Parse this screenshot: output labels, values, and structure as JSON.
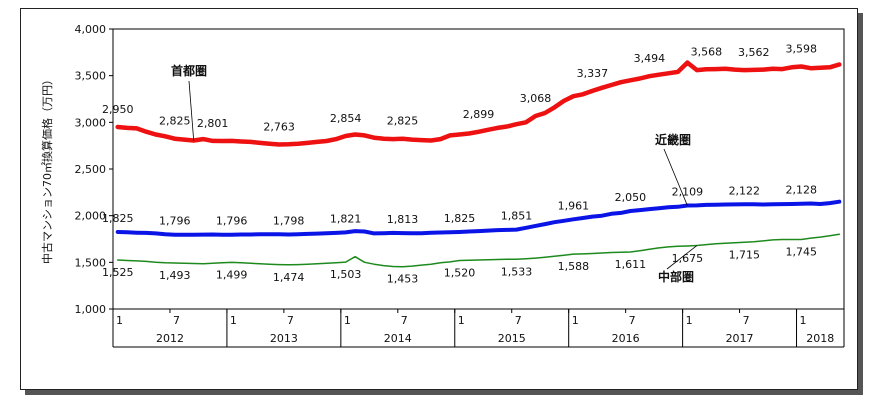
{
  "chart_data": {
    "type": "line",
    "ylabel": "中古マンション70㎡換算価格（万円）",
    "ylim": [
      1000,
      4000
    ],
    "yticks": [
      1000,
      1500,
      2000,
      2500,
      3000,
      3500,
      4000
    ],
    "ytick_labels": [
      "1,000",
      "1,500",
      "2,000",
      "2,500",
      "3,000",
      "3,500",
      "4,000"
    ],
    "x_start": "2012-01",
    "months": 77,
    "month_ticks": [
      {
        "i": 0,
        "label": "1"
      },
      {
        "i": 6,
        "label": "7"
      },
      {
        "i": 12,
        "label": "1"
      },
      {
        "i": 18,
        "label": "7"
      },
      {
        "i": 24,
        "label": "1"
      },
      {
        "i": 30,
        "label": "7"
      },
      {
        "i": 36,
        "label": "1"
      },
      {
        "i": 42,
        "label": "7"
      },
      {
        "i": 48,
        "label": "1"
      },
      {
        "i": 54,
        "label": "7"
      },
      {
        "i": 60,
        "label": "1"
      },
      {
        "i": 66,
        "label": "7"
      },
      {
        "i": 72,
        "label": "1"
      }
    ],
    "years": [
      {
        "label": "2012",
        "start": 0,
        "end": 12
      },
      {
        "label": "2013",
        "start": 12,
        "end": 24
      },
      {
        "label": "2014",
        "start": 24,
        "end": 36
      },
      {
        "label": "2015",
        "start": 36,
        "end": 48
      },
      {
        "label": "2016",
        "start": 48,
        "end": 60
      },
      {
        "label": "2017",
        "start": 60,
        "end": 72
      },
      {
        "label": "2018",
        "start": 72,
        "end": 77
      }
    ],
    "series": [
      {
        "name": "首都圏",
        "color": "#ee1111",
        "width": 4.5,
        "values": [
          2950,
          2940,
          2935,
          2900,
          2870,
          2850,
          2825,
          2815,
          2805,
          2820,
          2801,
          2800,
          2801,
          2795,
          2790,
          2780,
          2770,
          2763,
          2765,
          2770,
          2780,
          2790,
          2800,
          2820,
          2854,
          2870,
          2860,
          2835,
          2825,
          2820,
          2825,
          2815,
          2810,
          2805,
          2820,
          2860,
          2870,
          2880,
          2899,
          2920,
          2940,
          2955,
          2980,
          3000,
          3068,
          3100,
          3160,
          3230,
          3280,
          3300,
          3337,
          3370,
          3400,
          3430,
          3450,
          3470,
          3494,
          3510,
          3525,
          3540,
          3640,
          3560,
          3568,
          3570,
          3575,
          3565,
          3560,
          3562,
          3565,
          3575,
          3570,
          3590,
          3598,
          3580,
          3585,
          3590,
          3620
        ],
        "labels": [
          {
            "i": 0,
            "text": "2,950"
          },
          {
            "i": 6,
            "text": "2,825"
          },
          {
            "i": 10,
            "text": "2,801"
          },
          {
            "i": 17,
            "text": "2,763"
          },
          {
            "i": 24,
            "text": "2,854"
          },
          {
            "i": 30,
            "text": "2,825"
          },
          {
            "i": 38,
            "text": "2,899"
          },
          {
            "i": 44,
            "text": "3,068"
          },
          {
            "i": 50,
            "text": "3,337"
          },
          {
            "i": 56,
            "text": "3,494"
          },
          {
            "i": 62,
            "text": "3,568"
          },
          {
            "i": 67,
            "text": "3,562"
          },
          {
            "i": 72,
            "text": "3,598"
          }
        ]
      },
      {
        "name": "近畿圏",
        "color": "#0a14e6",
        "width": 4,
        "values": [
          1825,
          1822,
          1818,
          1815,
          1810,
          1800,
          1796,
          1795,
          1796,
          1797,
          1798,
          1796,
          1796,
          1798,
          1798,
          1800,
          1800,
          1800,
          1798,
          1800,
          1805,
          1808,
          1812,
          1815,
          1821,
          1835,
          1830,
          1810,
          1812,
          1815,
          1813,
          1812,
          1812,
          1818,
          1820,
          1822,
          1825,
          1830,
          1835,
          1840,
          1845,
          1848,
          1851,
          1870,
          1890,
          1910,
          1930,
          1945,
          1961,
          1975,
          1990,
          2000,
          2020,
          2030,
          2050,
          2060,
          2070,
          2080,
          2090,
          2095,
          2109,
          2110,
          2115,
          2118,
          2120,
          2121,
          2122,
          2122,
          2120,
          2122,
          2124,
          2125,
          2128,
          2130,
          2125,
          2135,
          2150
        ],
        "labels": [
          {
            "i": 0,
            "text": "1,825"
          },
          {
            "i": 6,
            "text": "1,796"
          },
          {
            "i": 12,
            "text": "1,796"
          },
          {
            "i": 18,
            "text": "1,798"
          },
          {
            "i": 24,
            "text": "1,821"
          },
          {
            "i": 30,
            "text": "1,813"
          },
          {
            "i": 36,
            "text": "1,825"
          },
          {
            "i": 42,
            "text": "1,851"
          },
          {
            "i": 48,
            "text": "1,961"
          },
          {
            "i": 54,
            "text": "2,050"
          },
          {
            "i": 60,
            "text": "2,109"
          },
          {
            "i": 66,
            "text": "2,122"
          },
          {
            "i": 72,
            "text": "2,128"
          }
        ]
      },
      {
        "name": "中部圏",
        "color": "#1e8a1e",
        "width": 1.5,
        "values": [
          1525,
          1520,
          1515,
          1510,
          1500,
          1495,
          1493,
          1490,
          1488,
          1485,
          1490,
          1495,
          1499,
          1495,
          1490,
          1485,
          1480,
          1476,
          1474,
          1476,
          1480,
          1485,
          1490,
          1495,
          1503,
          1560,
          1500,
          1480,
          1465,
          1455,
          1453,
          1460,
          1470,
          1480,
          1495,
          1505,
          1520,
          1522,
          1525,
          1528,
          1530,
          1532,
          1533,
          1538,
          1545,
          1555,
          1565,
          1575,
          1588,
          1590,
          1595,
          1600,
          1605,
          1608,
          1611,
          1625,
          1640,
          1655,
          1665,
          1672,
          1675,
          1680,
          1690,
          1700,
          1705,
          1710,
          1715,
          1720,
          1730,
          1740,
          1745,
          1745,
          1745,
          1760,
          1770,
          1785,
          1800
        ],
        "labels": [
          {
            "i": 0,
            "text": "1,525"
          },
          {
            "i": 6,
            "text": "1,493"
          },
          {
            "i": 12,
            "text": "1,499"
          },
          {
            "i": 18,
            "text": "1,474"
          },
          {
            "i": 24,
            "text": "1,503"
          },
          {
            "i": 30,
            "text": "1,453"
          },
          {
            "i": 36,
            "text": "1,520"
          },
          {
            "i": 42,
            "text": "1,533"
          },
          {
            "i": 48,
            "text": "1,588"
          },
          {
            "i": 54,
            "text": "1,611"
          },
          {
            "i": 60,
            "text": "1,675"
          },
          {
            "i": 66,
            "text": "1,715"
          },
          {
            "i": 72,
            "text": "1,745"
          }
        ]
      }
    ]
  }
}
